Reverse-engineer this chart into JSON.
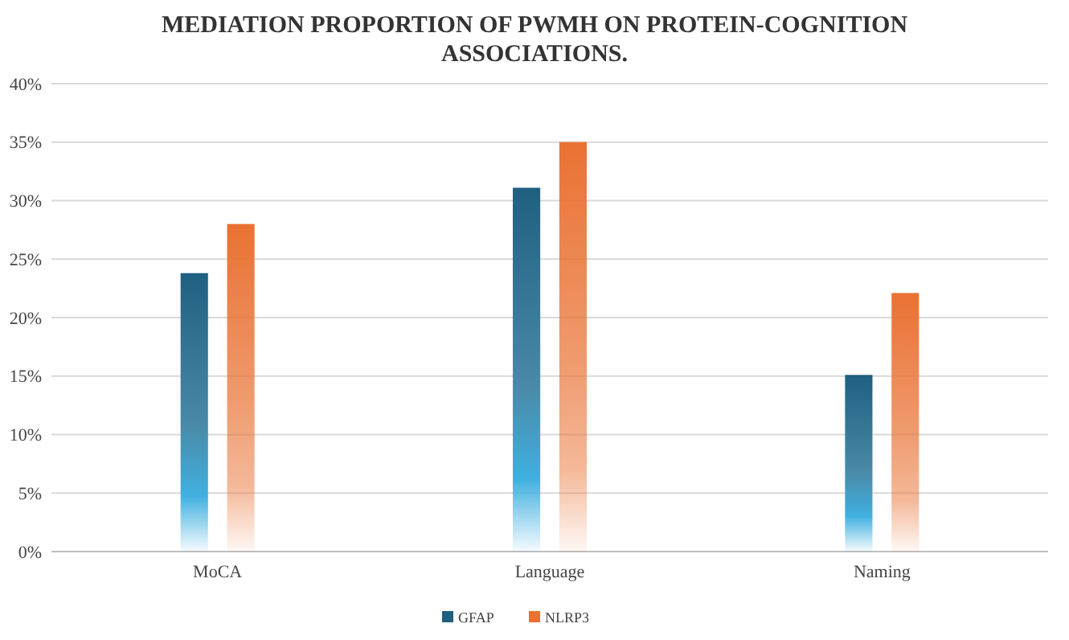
{
  "chart_data": {
    "type": "bar",
    "title": "MEDIATION PROPORTION OF PWMH ON PROTEIN-COGNITION ASSOCIATIONS.",
    "categories": [
      "MoCA",
      "Language",
      "Naming"
    ],
    "series": [
      {
        "name": "GFAP",
        "color": "#1f5f80",
        "values": [
          23.8,
          31.1,
          15.1
        ]
      },
      {
        "name": "NLRP3",
        "color": "#e97132",
        "values": [
          28,
          35,
          22.1
        ]
      }
    ],
    "ylim": [
      0,
      40
    ],
    "yticks": [
      {
        "value": 0,
        "label": "0%"
      },
      {
        "value": 5,
        "label": "5%"
      },
      {
        "value": 10,
        "label": "10%"
      },
      {
        "value": 15,
        "label": "15%"
      },
      {
        "value": 20,
        "label": "20%"
      },
      {
        "value": 25,
        "label": "25%"
      },
      {
        "value": 30,
        "label": "30%"
      },
      {
        "value": 35,
        "label": "35%"
      },
      {
        "value": 40,
        "label": "40%"
      }
    ],
    "grid": "y",
    "legend": "bottom"
  }
}
